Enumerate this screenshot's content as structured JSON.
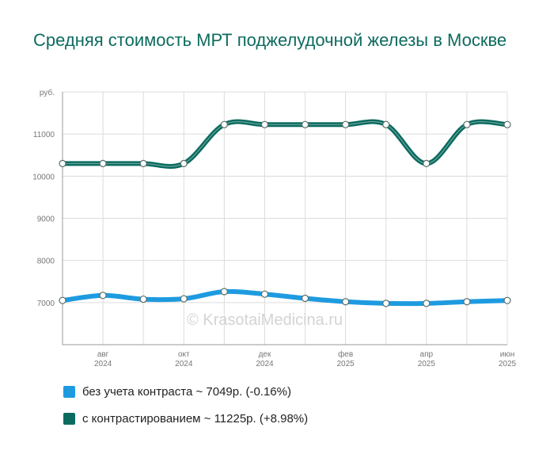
{
  "title": "Средняя стоимость МРТ поджелудочной железы в Москве",
  "watermark": "© KrasotaiMedicina.ru",
  "chart_data": {
    "type": "line",
    "ylabel": "руб.",
    "ylim": [
      6000,
      12000
    ],
    "yticks": [
      7000,
      8000,
      9000,
      10000,
      11000
    ],
    "x": [
      "2024-07",
      "2024-08",
      "2024-09",
      "2024-10",
      "2024-11",
      "2024-12",
      "2025-01",
      "2025-02",
      "2025-03",
      "2025-04",
      "2025-05",
      "2025-06"
    ],
    "xtick_labels": [
      {
        "index": 1,
        "month": "авг",
        "year": "2024"
      },
      {
        "index": 3,
        "month": "окт",
        "year": "2024"
      },
      {
        "index": 5,
        "month": "дек",
        "year": "2024"
      },
      {
        "index": 7,
        "month": "фев",
        "year": "2025"
      },
      {
        "index": 9,
        "month": "апр",
        "year": "2025"
      },
      {
        "index": 11,
        "month": "июн",
        "year": "2025"
      }
    ],
    "grid": true,
    "series": [
      {
        "name": "без учета контраста ~ 7049р. (-0.16%)",
        "color": "#1e9be0",
        "values": [
          7050,
          7170,
          7080,
          7090,
          7260,
          7200,
          7100,
          7020,
          6980,
          6980,
          7020,
          7050
        ]
      },
      {
        "name": "с контрастированием ~ 11225р. (+8.98%)",
        "color": "#0b6b5f",
        "values": [
          10300,
          10300,
          10300,
          10300,
          11225,
          11225,
          11225,
          11225,
          11225,
          10300,
          11225,
          11225
        ]
      }
    ]
  }
}
